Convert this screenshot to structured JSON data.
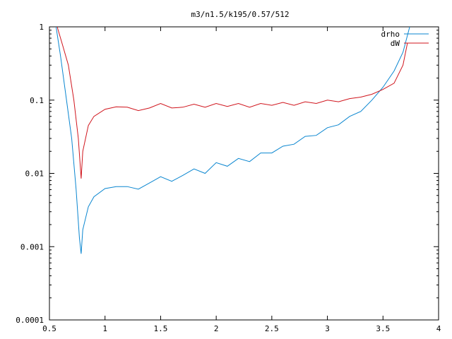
{
  "chart_data": {
    "type": "line",
    "title": "m3/n1.5/k195/0.57/512",
    "xlabel": "",
    "ylabel": "",
    "xlim": [
      0.5,
      4
    ],
    "ylim": [
      0.0001,
      1
    ],
    "yscale": "log",
    "grid": false,
    "legend_position": "top-right",
    "x_ticks": [
      0.5,
      1,
      1.5,
      2,
      2.5,
      3,
      3.5,
      4
    ],
    "x_tick_labels": [
      "0.5",
      "1",
      "1.5",
      "2",
      "2.5",
      "3",
      "3.5",
      "4"
    ],
    "y_ticks": [
      1,
      0.1,
      0.01,
      0.001,
      0.0001
    ],
    "y_tick_labels": [
      "1",
      "0.1",
      "0.01",
      "0.001",
      "0.0001"
    ],
    "series": [
      {
        "name": "drho",
        "color": "#0a86d0",
        "points": [
          [
            0.56,
            1.0
          ],
          [
            0.6,
            0.4
          ],
          [
            0.65,
            0.11
          ],
          [
            0.7,
            0.03
          ],
          [
            0.74,
            0.006
          ],
          [
            0.77,
            0.0013
          ],
          [
            0.785,
            0.0008
          ],
          [
            0.8,
            0.0017
          ],
          [
            0.85,
            0.0035
          ],
          [
            0.9,
            0.0048
          ],
          [
            1.0,
            0.0062
          ],
          [
            1.1,
            0.0066
          ],
          [
            1.2,
            0.0066
          ],
          [
            1.3,
            0.0061
          ],
          [
            1.4,
            0.0074
          ],
          [
            1.5,
            0.009
          ],
          [
            1.6,
            0.0078
          ],
          [
            1.7,
            0.0094
          ],
          [
            1.8,
            0.0115
          ],
          [
            1.9,
            0.01
          ],
          [
            2.0,
            0.014
          ],
          [
            2.1,
            0.0125
          ],
          [
            2.2,
            0.016
          ],
          [
            2.3,
            0.0145
          ],
          [
            2.4,
            0.019
          ],
          [
            2.5,
            0.019
          ],
          [
            2.6,
            0.0235
          ],
          [
            2.7,
            0.025
          ],
          [
            2.8,
            0.032
          ],
          [
            2.9,
            0.033
          ],
          [
            3.0,
            0.042
          ],
          [
            3.1,
            0.046
          ],
          [
            3.2,
            0.06
          ],
          [
            3.3,
            0.07
          ],
          [
            3.4,
            0.1
          ],
          [
            3.5,
            0.15
          ],
          [
            3.6,
            0.25
          ],
          [
            3.68,
            0.45
          ],
          [
            3.74,
            1.0
          ]
        ]
      },
      {
        "name": "dW",
        "color": "#d0141c",
        "points": [
          [
            0.57,
            1.0
          ],
          [
            0.62,
            0.55
          ],
          [
            0.67,
            0.3
          ],
          [
            0.72,
            0.1
          ],
          [
            0.76,
            0.03
          ],
          [
            0.785,
            0.0085
          ],
          [
            0.8,
            0.02
          ],
          [
            0.85,
            0.045
          ],
          [
            0.9,
            0.06
          ],
          [
            1.0,
            0.075
          ],
          [
            1.1,
            0.081
          ],
          [
            1.2,
            0.08
          ],
          [
            1.3,
            0.072
          ],
          [
            1.4,
            0.078
          ],
          [
            1.5,
            0.09
          ],
          [
            1.6,
            0.078
          ],
          [
            1.7,
            0.08
          ],
          [
            1.8,
            0.088
          ],
          [
            1.9,
            0.08
          ],
          [
            2.0,
            0.09
          ],
          [
            2.1,
            0.082
          ],
          [
            2.2,
            0.09
          ],
          [
            2.3,
            0.08
          ],
          [
            2.4,
            0.09
          ],
          [
            2.5,
            0.085
          ],
          [
            2.6,
            0.093
          ],
          [
            2.7,
            0.085
          ],
          [
            2.8,
            0.095
          ],
          [
            2.9,
            0.09
          ],
          [
            3.0,
            0.1
          ],
          [
            3.1,
            0.095
          ],
          [
            3.2,
            0.105
          ],
          [
            3.3,
            0.11
          ],
          [
            3.4,
            0.12
          ],
          [
            3.5,
            0.14
          ],
          [
            3.6,
            0.17
          ],
          [
            3.68,
            0.3
          ],
          [
            3.72,
            0.6
          ]
        ]
      }
    ]
  }
}
